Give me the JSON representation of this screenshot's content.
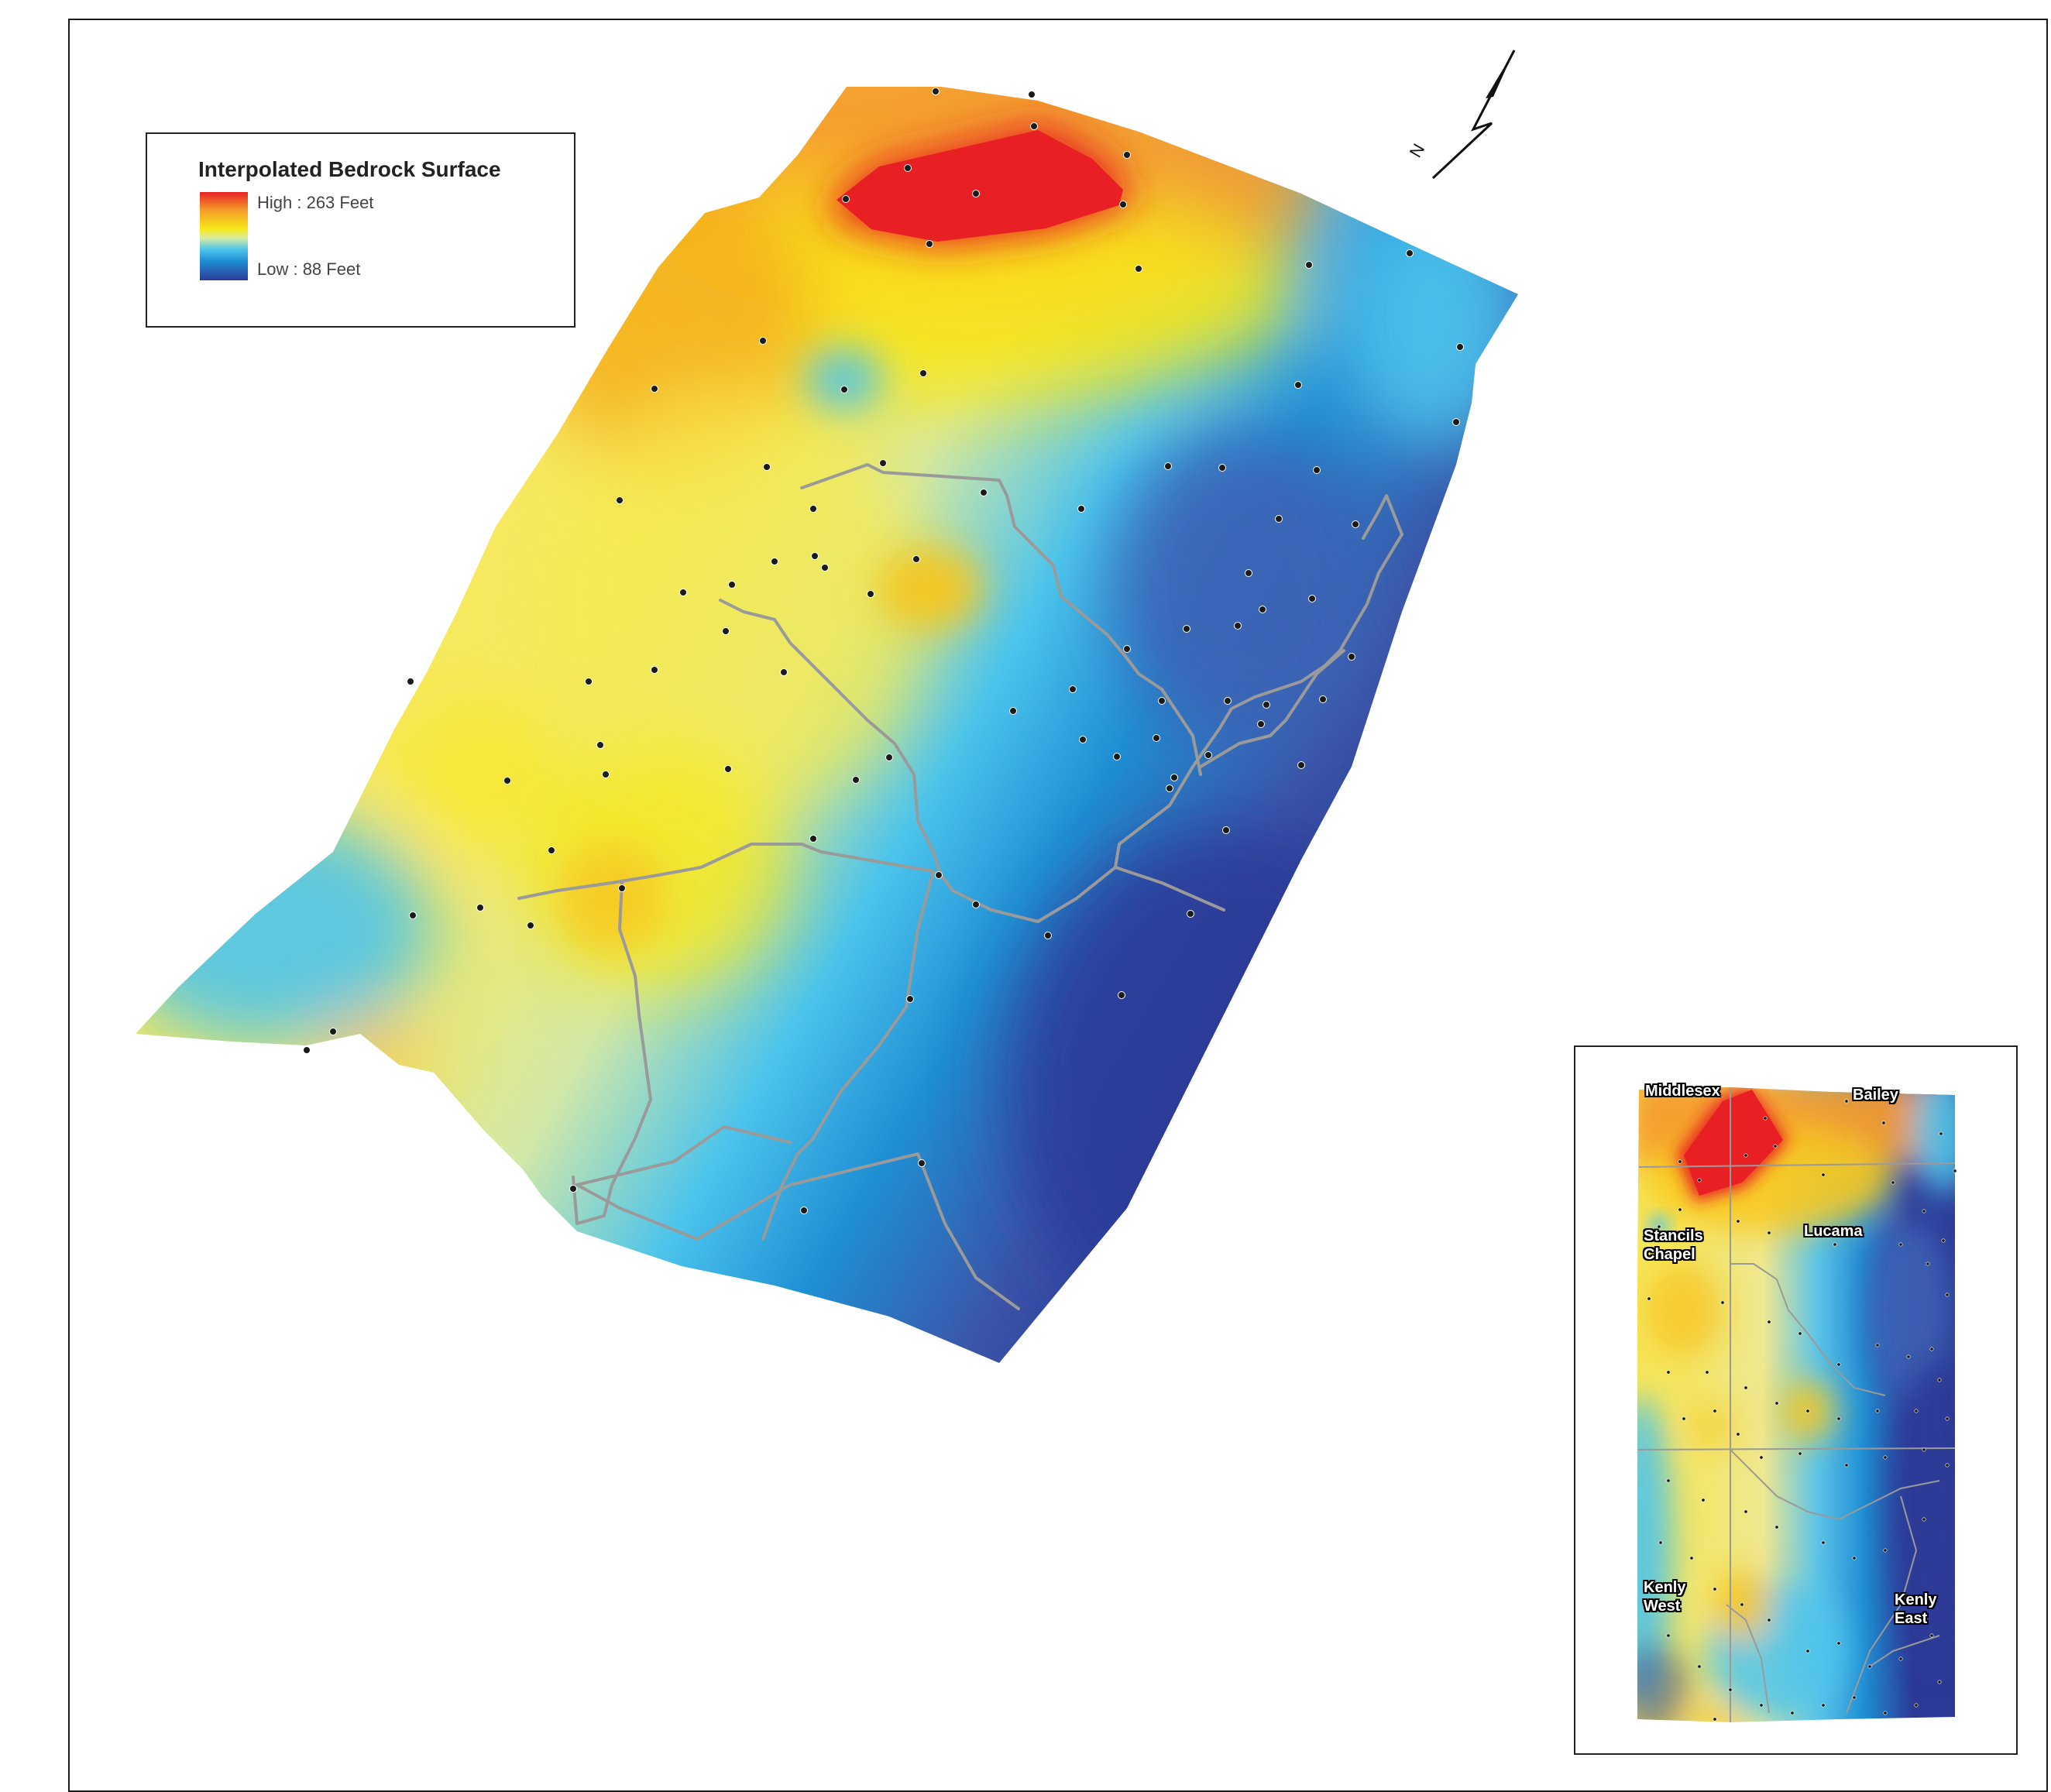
{
  "legend": {
    "title": "Interpolated Bedrock Surface",
    "high_label": "High : 263 Feet",
    "low_label": "Low : 88 Feet",
    "ramp_colors": [
      "#e82024",
      "#f49a2a",
      "#f8e81a",
      "#d8eca0",
      "#4cc4ec",
      "#1f8fd4",
      "#2c3a96"
    ]
  },
  "north_arrow": {
    "letter": "N"
  },
  "inset": {
    "quadrangles": [
      {
        "name": "Middlesex"
      },
      {
        "name": "Bailey"
      },
      {
        "name": "Lucama"
      },
      {
        "name": "Stancils Chapel"
      },
      {
        "name": "Kenly West"
      },
      {
        "name": "Kenly East"
      }
    ]
  },
  "colors": {
    "high": "#e82024",
    "orange": "#f49a2a",
    "yellow": "#f8e81a",
    "pale": "#d8eca0",
    "cyan": "#4cc4ec",
    "blue": "#1f8fd4",
    "low": "#2c3a96",
    "roads": "#9a9a9a",
    "wells": "#1a1a1a"
  }
}
